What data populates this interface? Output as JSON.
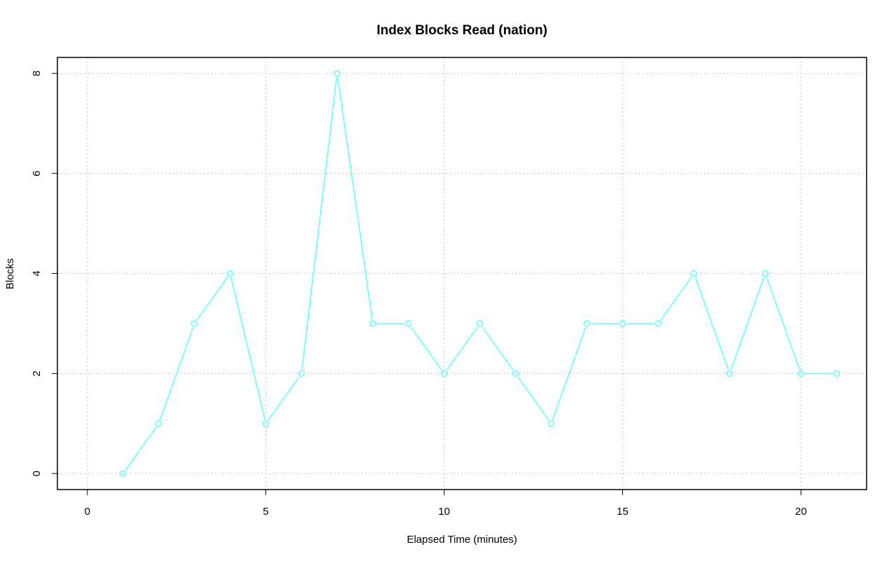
{
  "chart_data": {
    "type": "line",
    "title": "Index Blocks Read (nation)",
    "xlabel": "Elapsed Time (minutes)",
    "ylabel": "Blocks",
    "x_ticks": [
      0,
      5,
      10,
      15,
      20
    ],
    "y_ticks": [
      0,
      2,
      4,
      6,
      8
    ],
    "xlim": [
      -0.84,
      21.84
    ],
    "ylim": [
      -0.32,
      8.32
    ],
    "grid": true,
    "marker": "open-circle",
    "series": [
      {
        "x": [
          1,
          2,
          3,
          4,
          5,
          6,
          7,
          8,
          9,
          10,
          11,
          12,
          13,
          14,
          15,
          16,
          17,
          18,
          19,
          20,
          21
        ],
        "values": [
          0,
          1,
          3,
          4,
          1,
          2,
          8,
          3,
          3,
          2,
          3,
          2,
          1,
          3,
          3,
          3,
          4,
          2,
          4,
          2,
          2
        ],
        "color": "#66ffff"
      }
    ]
  },
  "colors": {
    "series": "#66ffff",
    "grid": "#bdbdbd",
    "frame": "#000000"
  }
}
